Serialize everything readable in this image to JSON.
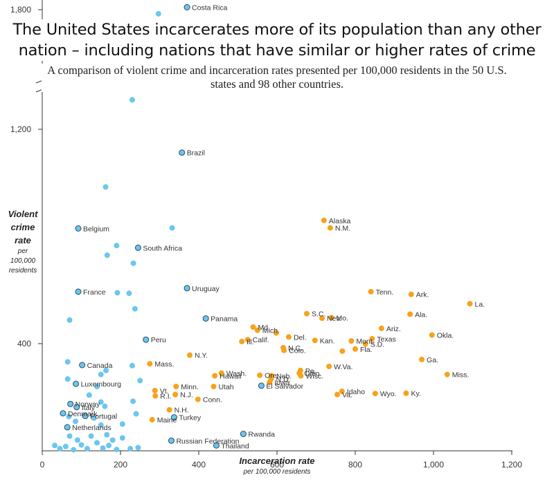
{
  "title": "The United States incarcerates more of its population than any other nation – including nations that have similar or higher rates of crime",
  "subtitle": "A comparison of violent crime and incarceration rates presented per 100,000 residents in the 50 U.S. states and 98 other countries.",
  "y_label": {
    "main_line1": "Violent",
    "main_line2": "crime",
    "main_line3": "rate",
    "sub_line1": "per",
    "sub_line2": "100,000",
    "sub_line3": "residents"
  },
  "x_label": {
    "main": "Incarceration rate",
    "sub": "per 100,000 residents"
  },
  "colors": {
    "countries": "#6cc6ee",
    "states": "#f7a21b",
    "highlight_country": "#6cc6ee",
    "highlight_stroke": "#2b4a5e",
    "axis": "#333333"
  },
  "chart_data": {
    "type": "scatter",
    "xlim": [
      0,
      1200
    ],
    "x_ticks": [
      "0",
      "200",
      "400",
      "600",
      "800",
      "1,000",
      "1,200"
    ],
    "y_ticks": [
      "400",
      "1,200",
      "1,800"
    ],
    "y_axis_break": true,
    "series": [
      {
        "points": [
          {
            "label": "Costa Rica",
            "x": 370,
            "y": 1810
          },
          {
            "label": "",
            "x": 297,
            "y": 1783
          },
          {
            "label": "",
            "x": 230,
            "y": 1310
          },
          {
            "label": "Brazil",
            "x": 357,
            "y": 1113
          },
          {
            "label": "",
            "x": 162,
            "y": 985
          },
          {
            "label": "Belgium",
            "x": 92,
            "y": 830
          },
          {
            "label": "",
            "x": 332,
            "y": 832
          },
          {
            "label": "",
            "x": 190,
            "y": 766
          },
          {
            "label": "South Africa",
            "x": 245,
            "y": 758
          },
          {
            "label": "",
            "x": 166,
            "y": 730
          },
          {
            "label": "",
            "x": 233,
            "y": 700
          },
          {
            "label": "Uruguay",
            "x": 370,
            "y": 607
          },
          {
            "label": "France",
            "x": 92,
            "y": 594
          },
          {
            "label": "",
            "x": 192,
            "y": 590
          },
          {
            "label": "",
            "x": 222,
            "y": 588
          },
          {
            "label": "",
            "x": 237,
            "y": 530
          },
          {
            "label": "Panama",
            "x": 418,
            "y": 494
          },
          {
            "label": "",
            "x": 70,
            "y": 488
          },
          {
            "label": "Peru",
            "x": 265,
            "y": 415
          },
          {
            "label": "",
            "x": 65,
            "y": 332
          },
          {
            "label": "Canada",
            "x": 102,
            "y": 320
          },
          {
            "label": "",
            "x": 230,
            "y": 318
          },
          {
            "label": "",
            "x": 163,
            "y": 300
          },
          {
            "label": "",
            "x": 65,
            "y": 268
          },
          {
            "label": "",
            "x": 150,
            "y": 285
          },
          {
            "label": "Luxembourg",
            "x": 86,
            "y": 250
          },
          {
            "label": "",
            "x": 250,
            "y": 262
          },
          {
            "label": "",
            "x": 140,
            "y": 240
          },
          {
            "label": "",
            "x": 120,
            "y": 208
          },
          {
            "label": "El Salvador",
            "x": 560,
            "y": 243
          },
          {
            "label": "Norway",
            "x": 72,
            "y": 175
          },
          {
            "label": "Italy",
            "x": 88,
            "y": 163
          },
          {
            "label": "",
            "x": 150,
            "y": 182
          },
          {
            "label": "",
            "x": 232,
            "y": 185
          },
          {
            "label": "",
            "x": 160,
            "y": 166
          },
          {
            "label": "Portugal",
            "x": 110,
            "y": 130
          },
          {
            "label": "Denmark",
            "x": 53,
            "y": 140
          },
          {
            "label": "",
            "x": 68,
            "y": 128
          },
          {
            "label": "",
            "x": 85,
            "y": 110
          },
          {
            "label": "",
            "x": 132,
            "y": 122
          },
          {
            "label": "",
            "x": 240,
            "y": 138
          },
          {
            "label": "Netherlands",
            "x": 64,
            "y": 88
          },
          {
            "label": "",
            "x": 150,
            "y": 96
          },
          {
            "label": "",
            "x": 205,
            "y": 100
          },
          {
            "label": "Turkey",
            "x": 337,
            "y": 125
          },
          {
            "label": "",
            "x": 32,
            "y": 20
          },
          {
            "label": "",
            "x": 45,
            "y": 8
          },
          {
            "label": "",
            "x": 60,
            "y": 16
          },
          {
            "label": "",
            "x": 80,
            "y": 4
          },
          {
            "label": "",
            "x": 100,
            "y": 22
          },
          {
            "label": "",
            "x": 115,
            "y": 8
          },
          {
            "label": "",
            "x": 140,
            "y": 30
          },
          {
            "label": "",
            "x": 155,
            "y": 10
          },
          {
            "label": "",
            "x": 170,
            "y": 20
          },
          {
            "label": "",
            "x": 190,
            "y": 5
          },
          {
            "label": "",
            "x": 180,
            "y": 40
          },
          {
            "label": "",
            "x": 165,
            "y": 60
          },
          {
            "label": "",
            "x": 125,
            "y": 55
          },
          {
            "label": "",
            "x": 90,
            "y": 40
          },
          {
            "label": "",
            "x": 70,
            "y": 55
          },
          {
            "label": "",
            "x": 205,
            "y": 48
          },
          {
            "label": "",
            "x": 225,
            "y": 8
          },
          {
            "label": "",
            "x": 245,
            "y": 12
          },
          {
            "label": "Russian Federation",
            "x": 330,
            "y": 38
          },
          {
            "label": "Rwanda",
            "x": 514,
            "y": 63
          },
          {
            "label": "Thailand",
            "x": 445,
            "y": 20
          }
        ]
      },
      {
        "points": [
          {
            "label": "Alaska",
            "x": 720,
            "y": 860
          },
          {
            "label": "N.M.",
            "x": 736,
            "y": 832
          },
          {
            "label": "Tenn.",
            "x": 840,
            "y": 594
          },
          {
            "label": "Ark.",
            "x": 943,
            "y": 584
          },
          {
            "label": "La.",
            "x": 1093,
            "y": 549
          },
          {
            "label": "Ala.",
            "x": 940,
            "y": 510
          },
          {
            "label": "S.C.",
            "x": 676,
            "y": 512
          },
          {
            "label": "Mo.",
            "x": 739,
            "y": 497
          },
          {
            "label": "Nev.",
            "x": 715,
            "y": 495
          },
          {
            "label": "Ariz.",
            "x": 867,
            "y": 457
          },
          {
            "label": "Md.",
            "x": 539,
            "y": 462
          },
          {
            "label": "Mich.",
            "x": 550,
            "y": 450
          },
          {
            "label": "",
            "x": 598,
            "y": 440
          },
          {
            "label": "Okla.",
            "x": 996,
            "y": 432
          },
          {
            "label": "Calif.",
            "x": 525,
            "y": 415
          },
          {
            "label": "Ill.",
            "x": 510,
            "y": 408
          },
          {
            "label": "Del.",
            "x": 630,
            "y": 425
          },
          {
            "label": "Kan.",
            "x": 697,
            "y": 412
          },
          {
            "label": "Texas",
            "x": 843,
            "y": 418
          },
          {
            "label": "Mont.",
            "x": 790,
            "y": 410
          },
          {
            "label": "S.D.",
            "x": 826,
            "y": 399
          },
          {
            "label": "N.C.",
            "x": 616,
            "y": 385
          },
          {
            "label": "Colo.",
            "x": 618,
            "y": 375
          },
          {
            "label": "Fla.",
            "x": 800,
            "y": 380
          },
          {
            "label": "",
            "x": 767,
            "y": 372
          },
          {
            "label": "Ga.",
            "x": 970,
            "y": 341
          },
          {
            "label": "N.Y.",
            "x": 377,
            "y": 357
          },
          {
            "label": "Mass.",
            "x": 275,
            "y": 325
          },
          {
            "label": "Pa.",
            "x": 660,
            "y": 300
          },
          {
            "label": "Ohio",
            "x": 657,
            "y": 290
          },
          {
            "label": "Wisc.",
            "x": 661,
            "y": 280
          },
          {
            "label": "W.Va.",
            "x": 733,
            "y": 315
          },
          {
            "label": "Miss.",
            "x": 1035,
            "y": 285
          },
          {
            "label": "Wash.",
            "x": 458,
            "y": 290
          },
          {
            "label": "Hawaii",
            "x": 441,
            "y": 280
          },
          {
            "label": "Ore.",
            "x": 556,
            "y": 282
          },
          {
            "label": "Neb.",
            "x": 586,
            "y": 280
          },
          {
            "label": "N.D.",
            "x": 585,
            "y": 268
          },
          {
            "label": "Iowa",
            "x": 581,
            "y": 256
          },
          {
            "label": "Idaho",
            "x": 766,
            "y": 222
          },
          {
            "label": "Va.",
            "x": 754,
            "y": 210
          },
          {
            "label": "Wyo.",
            "x": 851,
            "y": 214
          },
          {
            "label": "Ky.",
            "x": 930,
            "y": 215
          },
          {
            "label": "Minn.",
            "x": 342,
            "y": 240
          },
          {
            "label": "Utah",
            "x": 438,
            "y": 240
          },
          {
            "label": "Vt.",
            "x": 288,
            "y": 225
          },
          {
            "label": "N.J.",
            "x": 340,
            "y": 210
          },
          {
            "label": "R.I.",
            "x": 289,
            "y": 205
          },
          {
            "label": "Conn.",
            "x": 398,
            "y": 192
          },
          {
            "label": "N.H.",
            "x": 325,
            "y": 153
          },
          {
            "label": "Maine",
            "x": 281,
            "y": 116
          }
        ]
      }
    ]
  }
}
